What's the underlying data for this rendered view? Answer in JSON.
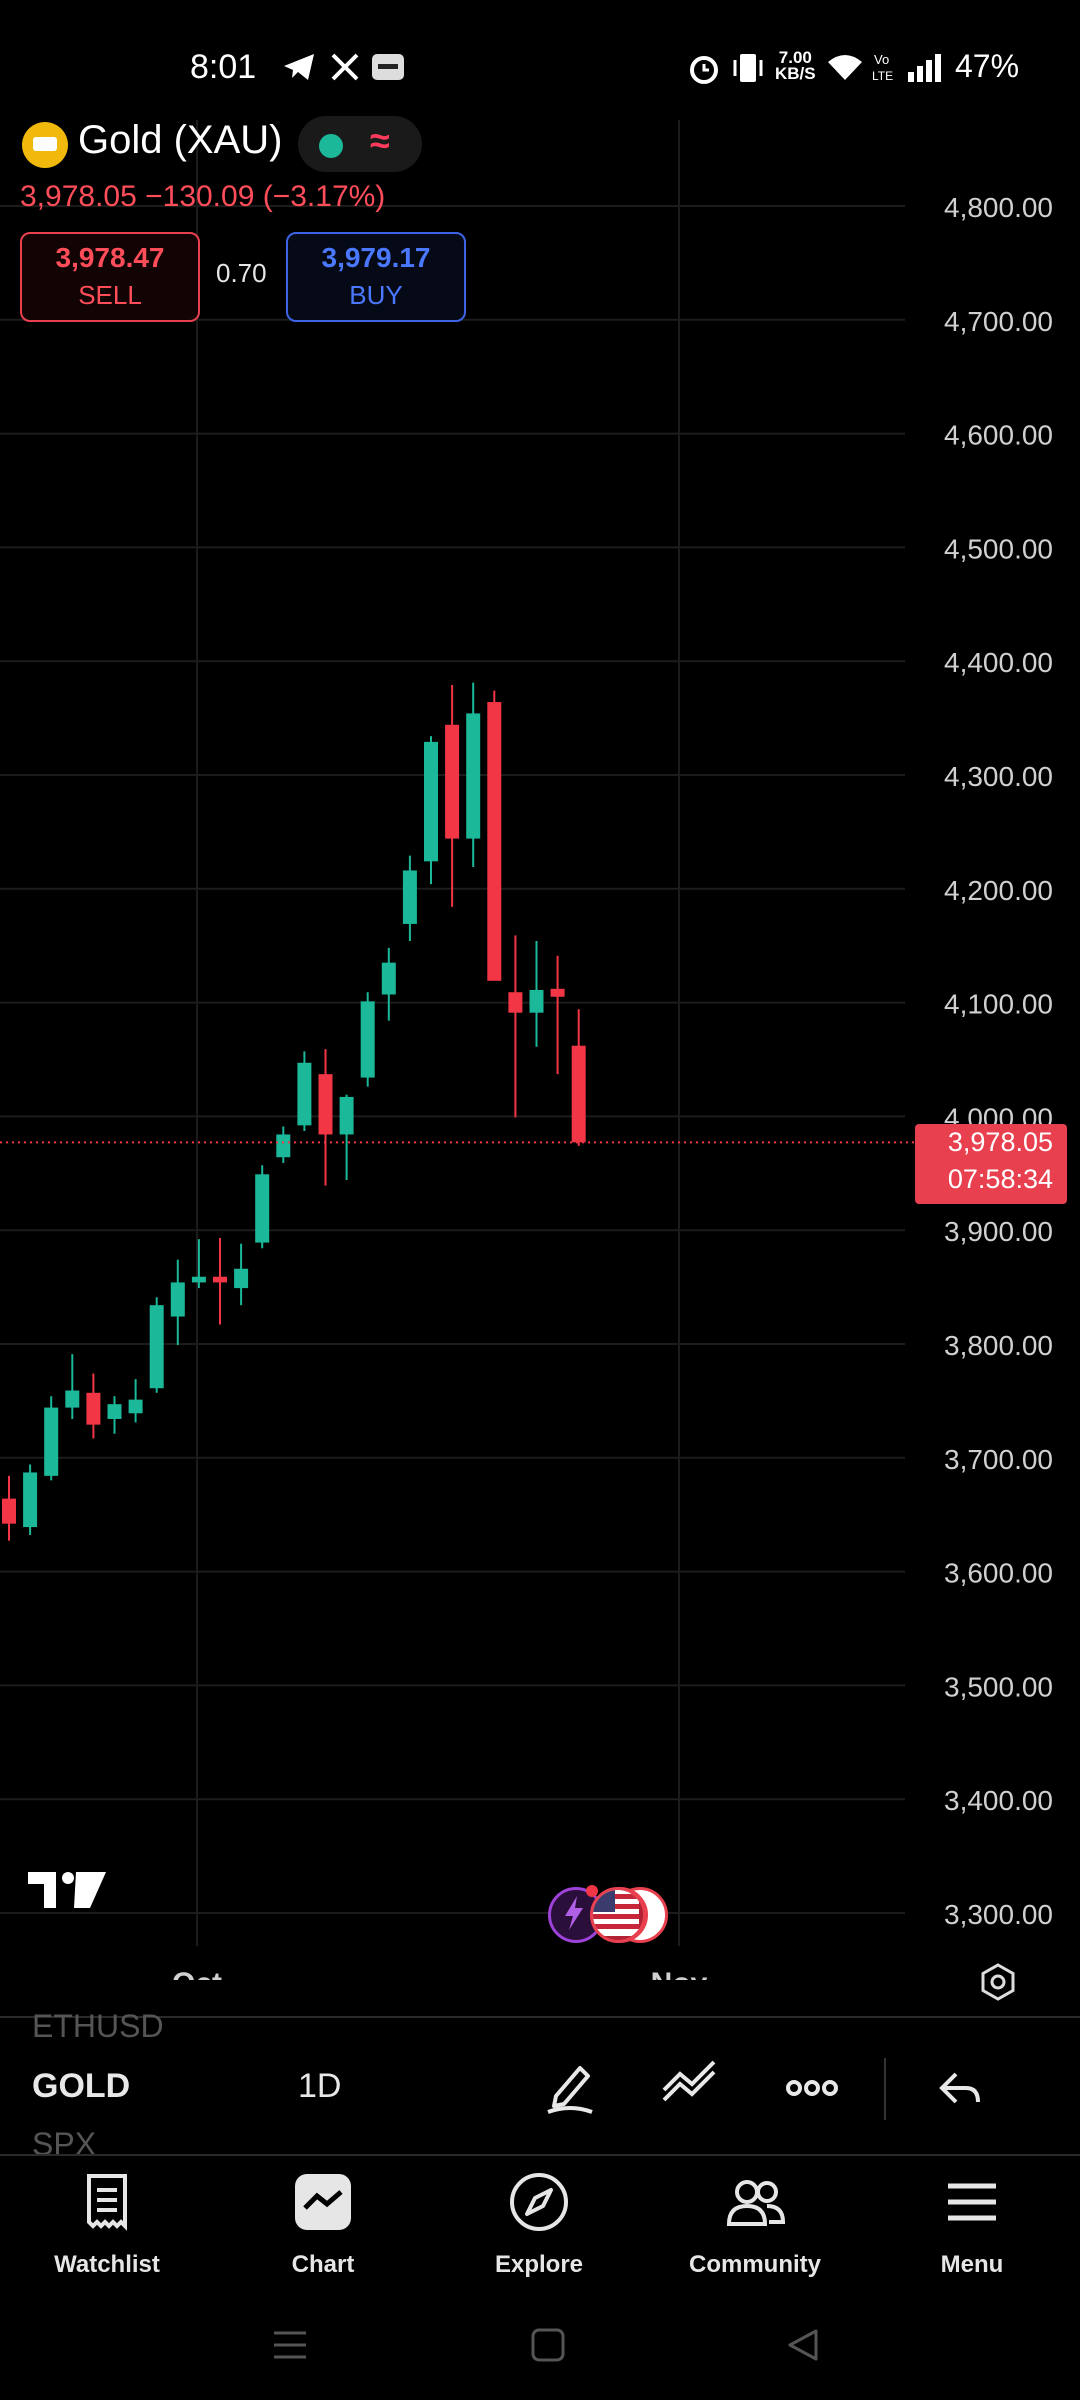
{
  "status_bar": {
    "time": "8:01",
    "net_speed": "7.00\nKB/S",
    "battery": "47%",
    "icons": [
      "telegram-icon",
      "x-icon",
      "bybit-icon",
      "alarm-icon",
      "vibrate-icon",
      "wifi-icon",
      "volte-icon",
      "signal-icon"
    ]
  },
  "header": {
    "symbol_title": "Gold (XAU)",
    "price_change": "3,978.05  −130.09 (−3.17%)",
    "sell": {
      "price": "3,978.47",
      "label": "SELL"
    },
    "spread": "0.70",
    "buy": {
      "price": "3,979.17",
      "label": "BUY"
    }
  },
  "current_price_label": {
    "price": "3,978.05",
    "countdown": "07:58:34"
  },
  "chart_data": {
    "type": "candlestick",
    "title": "",
    "xlabel": "",
    "ylabel": "",
    "y_ticks": [
      "4,800.00",
      "4,700.00",
      "4,600.00",
      "4,500.00",
      "4,400.00",
      "4,300.00",
      "4,200.00",
      "4,100.00",
      "4,000.00",
      "3,900.00",
      "3,800.00",
      "3,700.00",
      "3,600.00",
      "3,500.00",
      "3,400.00",
      "3,300.00"
    ],
    "x_ticks": [
      "Oct",
      "Nov"
    ],
    "ylim": [
      3270,
      4870
    ],
    "grid": true,
    "up_color": "#1bb89a",
    "down_color": "#f23645",
    "last_price": 3978.05,
    "candles": [
      {
        "o": 3665,
        "h": 3685,
        "l": 3628,
        "c": 3643
      },
      {
        "o": 3640,
        "h": 3695,
        "l": 3633,
        "c": 3688
      },
      {
        "o": 3685,
        "h": 3755,
        "l": 3681,
        "c": 3745
      },
      {
        "o": 3745,
        "h": 3792,
        "l": 3735,
        "c": 3760
      },
      {
        "o": 3758,
        "h": 3775,
        "l": 3718,
        "c": 3730
      },
      {
        "o": 3735,
        "h": 3755,
        "l": 3722,
        "c": 3748
      },
      {
        "o": 3740,
        "h": 3770,
        "l": 3732,
        "c": 3752
      },
      {
        "o": 3762,
        "h": 3842,
        "l": 3758,
        "c": 3835
      },
      {
        "o": 3825,
        "h": 3875,
        "l": 3800,
        "c": 3855
      },
      {
        "o": 3855,
        "h": 3893,
        "l": 3850,
        "c": 3860
      },
      {
        "o": 3860,
        "h": 3894,
        "l": 3818,
        "c": 3855
      },
      {
        "o": 3850,
        "h": 3889,
        "l": 3835,
        "c": 3867
      },
      {
        "o": 3890,
        "h": 3958,
        "l": 3885,
        "c": 3950
      },
      {
        "o": 3965,
        "h": 3992,
        "l": 3960,
        "c": 3985
      },
      {
        "o": 3993,
        "h": 4058,
        "l": 3988,
        "c": 4048
      },
      {
        "o": 4038,
        "h": 4060,
        "l": 3940,
        "c": 3985
      },
      {
        "o": 3985,
        "h": 4020,
        "l": 3945,
        "c": 4018
      },
      {
        "o": 4035,
        "h": 4110,
        "l": 4027,
        "c": 4102
      },
      {
        "o": 4108,
        "h": 4149,
        "l": 4085,
        "c": 4136
      },
      {
        "o": 4170,
        "h": 4230,
        "l": 4155,
        "c": 4217
      },
      {
        "o": 4225,
        "h": 4335,
        "l": 4205,
        "c": 4330
      },
      {
        "o": 4345,
        "h": 4380,
        "l": 4185,
        "c": 4245
      },
      {
        "o": 4245,
        "h": 4382,
        "l": 4220,
        "c": 4355
      },
      {
        "o": 4365,
        "h": 4375,
        "l": 4135,
        "c": 4120
      },
      {
        "o": 4110,
        "h": 4160,
        "l": 4000,
        "c": 4092
      },
      {
        "o": 4092,
        "h": 4155,
        "l": 4062,
        "c": 4112
      },
      {
        "o": 4113,
        "h": 4142,
        "l": 4038,
        "c": 4106
      },
      {
        "o": 4063,
        "h": 4095,
        "l": 3975,
        "c": 3978.05
      }
    ]
  },
  "toolbar": {
    "symbol_prev": "ETHUSD",
    "symbol_current": "GOLD",
    "symbol_next": "SPX",
    "interval": "1D"
  },
  "bottom_nav": [
    {
      "label": "Watchlist",
      "icon": "watchlist-icon"
    },
    {
      "label": "Chart",
      "icon": "chart-icon"
    },
    {
      "label": "Explore",
      "icon": "compass-icon"
    },
    {
      "label": "Community",
      "icon": "community-icon"
    },
    {
      "label": "Menu",
      "icon": "menu-icon"
    }
  ]
}
